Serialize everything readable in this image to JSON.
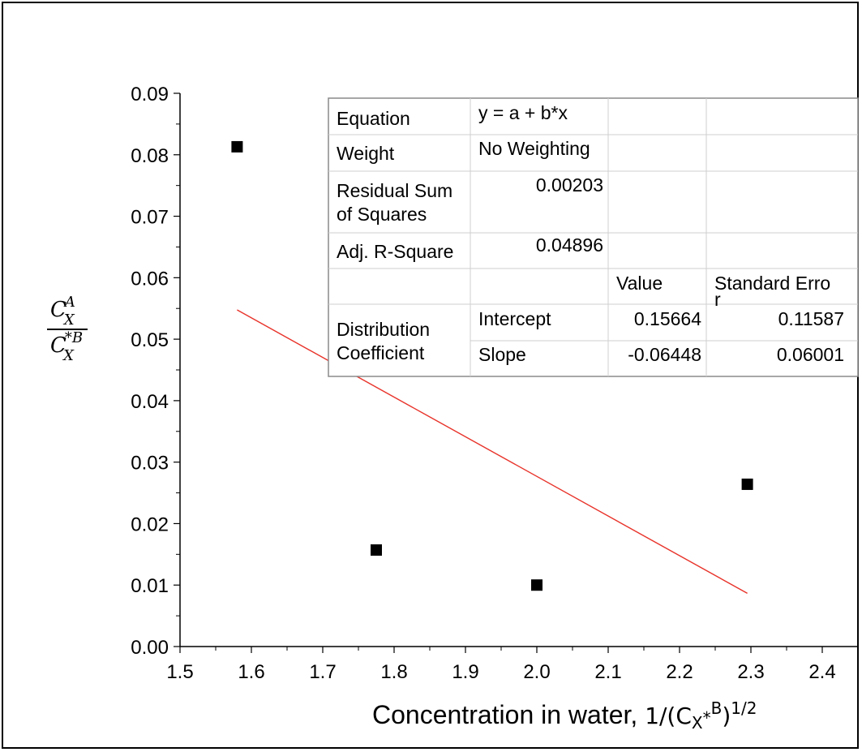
{
  "chart_data": {
    "type": "scatter",
    "title": "",
    "xlabel_main": "Concentration in water, ",
    "xlabel_formula": {
      "prefix": "1/(C",
      "sub": "X",
      "star": "*",
      "sup": "B",
      "close": ")",
      "power": "1/2"
    },
    "ylabel": {
      "numerator_base": "C",
      "numerator_sub": "X",
      "numerator_sup": "A",
      "denominator_base": "C",
      "denominator_sub": "X",
      "denominator_sup": "*B"
    },
    "xlim": [
      1.5,
      2.45
    ],
    "ylim": [
      0,
      0.09
    ],
    "x_ticks": [
      "1.5",
      "1.6",
      "1.7",
      "1.8",
      "1.9",
      "2.0",
      "2.1",
      "2.2",
      "2.3",
      "2.4"
    ],
    "y_ticks": [
      "0.00",
      "0.01",
      "0.02",
      "0.03",
      "0.04",
      "0.05",
      "0.06",
      "0.07",
      "0.08",
      "0.09"
    ],
    "points": [
      {
        "x": 1.58,
        "y": 0.0813
      },
      {
        "x": 1.775,
        "y": 0.0157
      },
      {
        "x": 2.0,
        "y": 0.01
      },
      {
        "x": 2.295,
        "y": 0.0264
      }
    ],
    "fit_line": {
      "x_start": 1.58,
      "x_end": 2.295,
      "intercept": 0.15664,
      "slope": -0.06448
    },
    "marker_color": "#000000",
    "fit_color": "#e8332a",
    "grid": false,
    "stats_table": {
      "equation_label": "Equation",
      "equation_value": "y = a + b*x",
      "weight_label": "Weight",
      "weight_value": "No Weighting",
      "rss_label_line1": "Residual Sum",
      "rss_label_line2": "of Squares",
      "rss_value": "0.00203",
      "adjr_label": "Adj. R-Square",
      "adjr_value": "0.04896",
      "value_header": "Value",
      "stderr_header": "Standard Erro",
      "stderr_header_overflow": "r",
      "group_label_line1": "Distribution",
      "group_label_line2": "Coefficient",
      "intercept_label": "Intercept",
      "intercept_value": "0.15664",
      "intercept_stderr": "0.11587",
      "slope_label": "Slope",
      "slope_value": "-0.06448",
      "slope_stderr": "0.06001"
    }
  }
}
